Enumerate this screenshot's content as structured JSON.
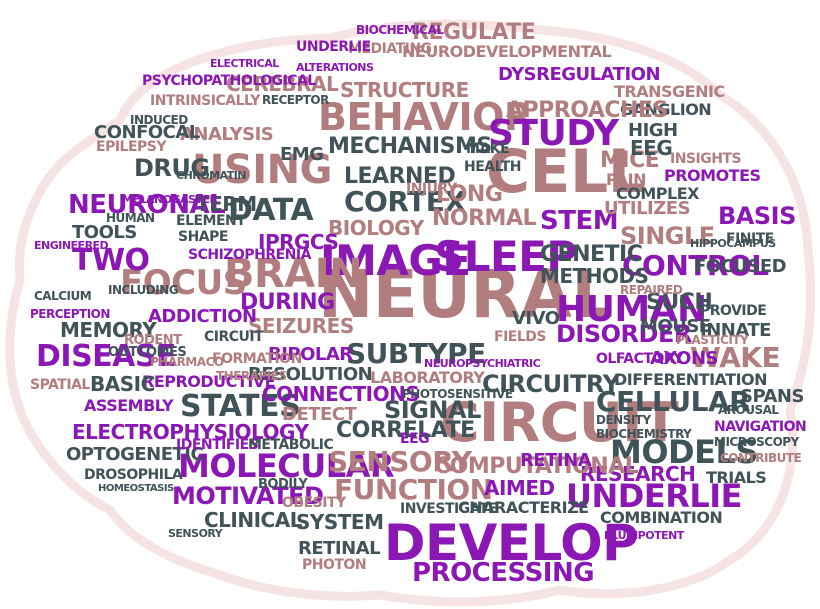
{
  "colors": {
    "rose": "#b27d7e",
    "slate": "#3f5358",
    "purple": "#8b18b5",
    "outline": "#f6e4e4"
  },
  "words": {
    "neural": "NEURAL",
    "cell": "CELL",
    "circuit": "CIRCUIT",
    "develop": "DEVELOP",
    "image": "IMAGE",
    "sleep": "SLEEP",
    "brain": "BRAIN",
    "behavior": "BEHAVIOR",
    "using": "USING",
    "study": "STUDY",
    "human": "HUMAN",
    "molecular": "MOLECULAR",
    "underlie": "UNDERLIE",
    "models": "MODELS",
    "disease": "DISEASE",
    "focus": "FOCUS",
    "neuronal": "NEURONAL",
    "data": "DATA",
    "cortex": "CORTEX",
    "mechanisms": "MECHANISMS",
    "structure": "STRUCTURE",
    "function": "FUNCTION",
    "processing": "PROCESSING",
    "sensory": "SENSORY",
    "stem": "STEM",
    "control": "CONTROL",
    "disorder": "DISORDER",
    "wake": "WAKE",
    "cellular": "CELLULAR",
    "research": "RESEARCH",
    "states": "STATES",
    "electrophysiology": "ELECTROPHYSIOLOGY",
    "subtype": "SUBTYPE",
    "computational": "COMPUTATIONAL",
    "circuitry": "CIRCUITRY",
    "signal": "SIGNAL",
    "correlate": "CORRELATE",
    "genetic": "GENETIC",
    "methods": "METHODS",
    "single": "SINGLE",
    "basis": "BASIS",
    "mice": "MICE",
    "pain": "PAIN",
    "eeg": "EEG",
    "high": "HIGH",
    "ganglion": "GANGLION",
    "regulate": "REGULATE",
    "neurodevelopmental": "NEURODEVELOPMENTAL",
    "dysregulation": "DYSREGULATION",
    "approaches": "APPROACHES",
    "learned": "LEARNED",
    "biology": "BIOLOGY",
    "normal": "NORMAL",
    "long": "LONG",
    "during": "DURING",
    "seizures": "SEIZURES",
    "addiction": "ADDICTION",
    "memory": "MEMORY",
    "two": "TWO",
    "tools": "TOOLS",
    "drug": "DRUG",
    "term": "TERM",
    "analysis": "ANALYSIS",
    "cerebral": "CEREBRAL",
    "confocal": "CONFOCAL",
    "epilepsy": "EPILEPSY",
    "psychopathological": "PSYCHOPATHOLOGICAL",
    "intrinsically": "INTRINSICALLY",
    "ipracs": "IPRGCS",
    "emg": "EMG",
    "schizophrenia": "SCHIZOPHRENIA",
    "bipolar": "BIPOLAR",
    "resolution": "RESOLUTION",
    "connections": "CONNECTIONS",
    "detect": "DETECT",
    "reproductive": "REPRODUCTIVE",
    "assembly": "ASSEMBLY",
    "basic": "BASIC",
    "spatial": "SPATIAL",
    "optogenetic": "OPTOGENETIC",
    "drosophila": "DROSOPHILA",
    "motivated": "MOTIVATED",
    "clinical": "CLINICAL",
    "identifies": "IDENTIFIES",
    "metabolic": "METABOLIC",
    "system": "SYSTEM",
    "retinal": "RETINAL",
    "obesity": "OBESITY",
    "photon": "PHOTON",
    "laboratory": "LABORATORY",
    "photosensitive": "PHOTOSENSITIVE",
    "eegb": "EEG",
    "aimed": "AIMED",
    "characterize": "CHARACTERIZE",
    "investigate": "INVESTIGATE",
    "combination": "COMBINATION",
    "retina": "RETINA",
    "vivo": "VIVO",
    "fields": "FIELDS",
    "utilizes": "UTILIZES",
    "such": "SUCH",
    "mouse": "MOUSE",
    "axons": "AXONS",
    "innate": "INNATE",
    "focused": "FOCUSED",
    "finite": "FINITE",
    "differentiation": "DIFFERENTIATION",
    "olfactory": "OLFACTORY",
    "plasticity": "PLASTICITY",
    "provide": "PROVIDE",
    "hippocampus": "HIPPOCAMPUS",
    "transgenic": "TRANSGENIC",
    "promotes": "PROMOTES",
    "insights": "INSIGHTS",
    "complex": "COMPLEX",
    "study2": "STUDY",
    "spans": "SPANS",
    "navigation": "NAVIGATION",
    "microscopy": "MICROSCOPY",
    "trials": "TRIALS",
    "arousal": "AROUSAL",
    "contribute": "CONTRIBUTE",
    "biochemistry": "BIOCHEMISTRY",
    "density": "DENSITY",
    "mediating": "MEDIATING",
    "underlie2": "UNDERLIE",
    "biochemical": "BIOCHEMICAL",
    "perception": "PERCEPTION",
    "calcium": "CALCIUM",
    "engineered": "ENGINEERED",
    "human2": "HUMAN",
    "melanogaster": "MELANOGASTER",
    "element": "ELEMENT",
    "shape": "SHAPE",
    "circuit2": "CIRCUIT",
    "formation": "FORMATION",
    "outcomes": "OUTCOMES",
    "rodent": "RODENT",
    "pharmaco": "PHARMACO",
    "therapies": "THERAPIES",
    "repaired": "REPAIRED",
    "injury": "INJURY",
    "health": "HEALTH",
    "make": "MAKE",
    "mechanisms2": "MECHANISMS",
    "neuropsychiatric": "NEUROPSYCHIATRIC",
    "induced": "INDUCED",
    "chromatin": "CHROMATIN",
    "receptor": "RECEPTOR",
    "electrical": "ELECTRICAL",
    "mediating2": "ALTERATIONS",
    "tools2": "TOOLS",
    "molecular2": "MOLECULAR",
    "cortex2": "CORTEX",
    "neuronal2": "NEURONAL",
    "including": "INCLUDING",
    "retinal2": "RETINAL",
    "homeostasis": "HOMEOSTASIS",
    "models2": "MODELS",
    "sensory2": "SENSORY",
    "bodily": "BODILY",
    "pluripotent": "PLURIPOTENT",
    "basis2": "BASIS",
    "behavior2": "BEHAVIOR",
    "research2": "RESEARCH"
  }
}
